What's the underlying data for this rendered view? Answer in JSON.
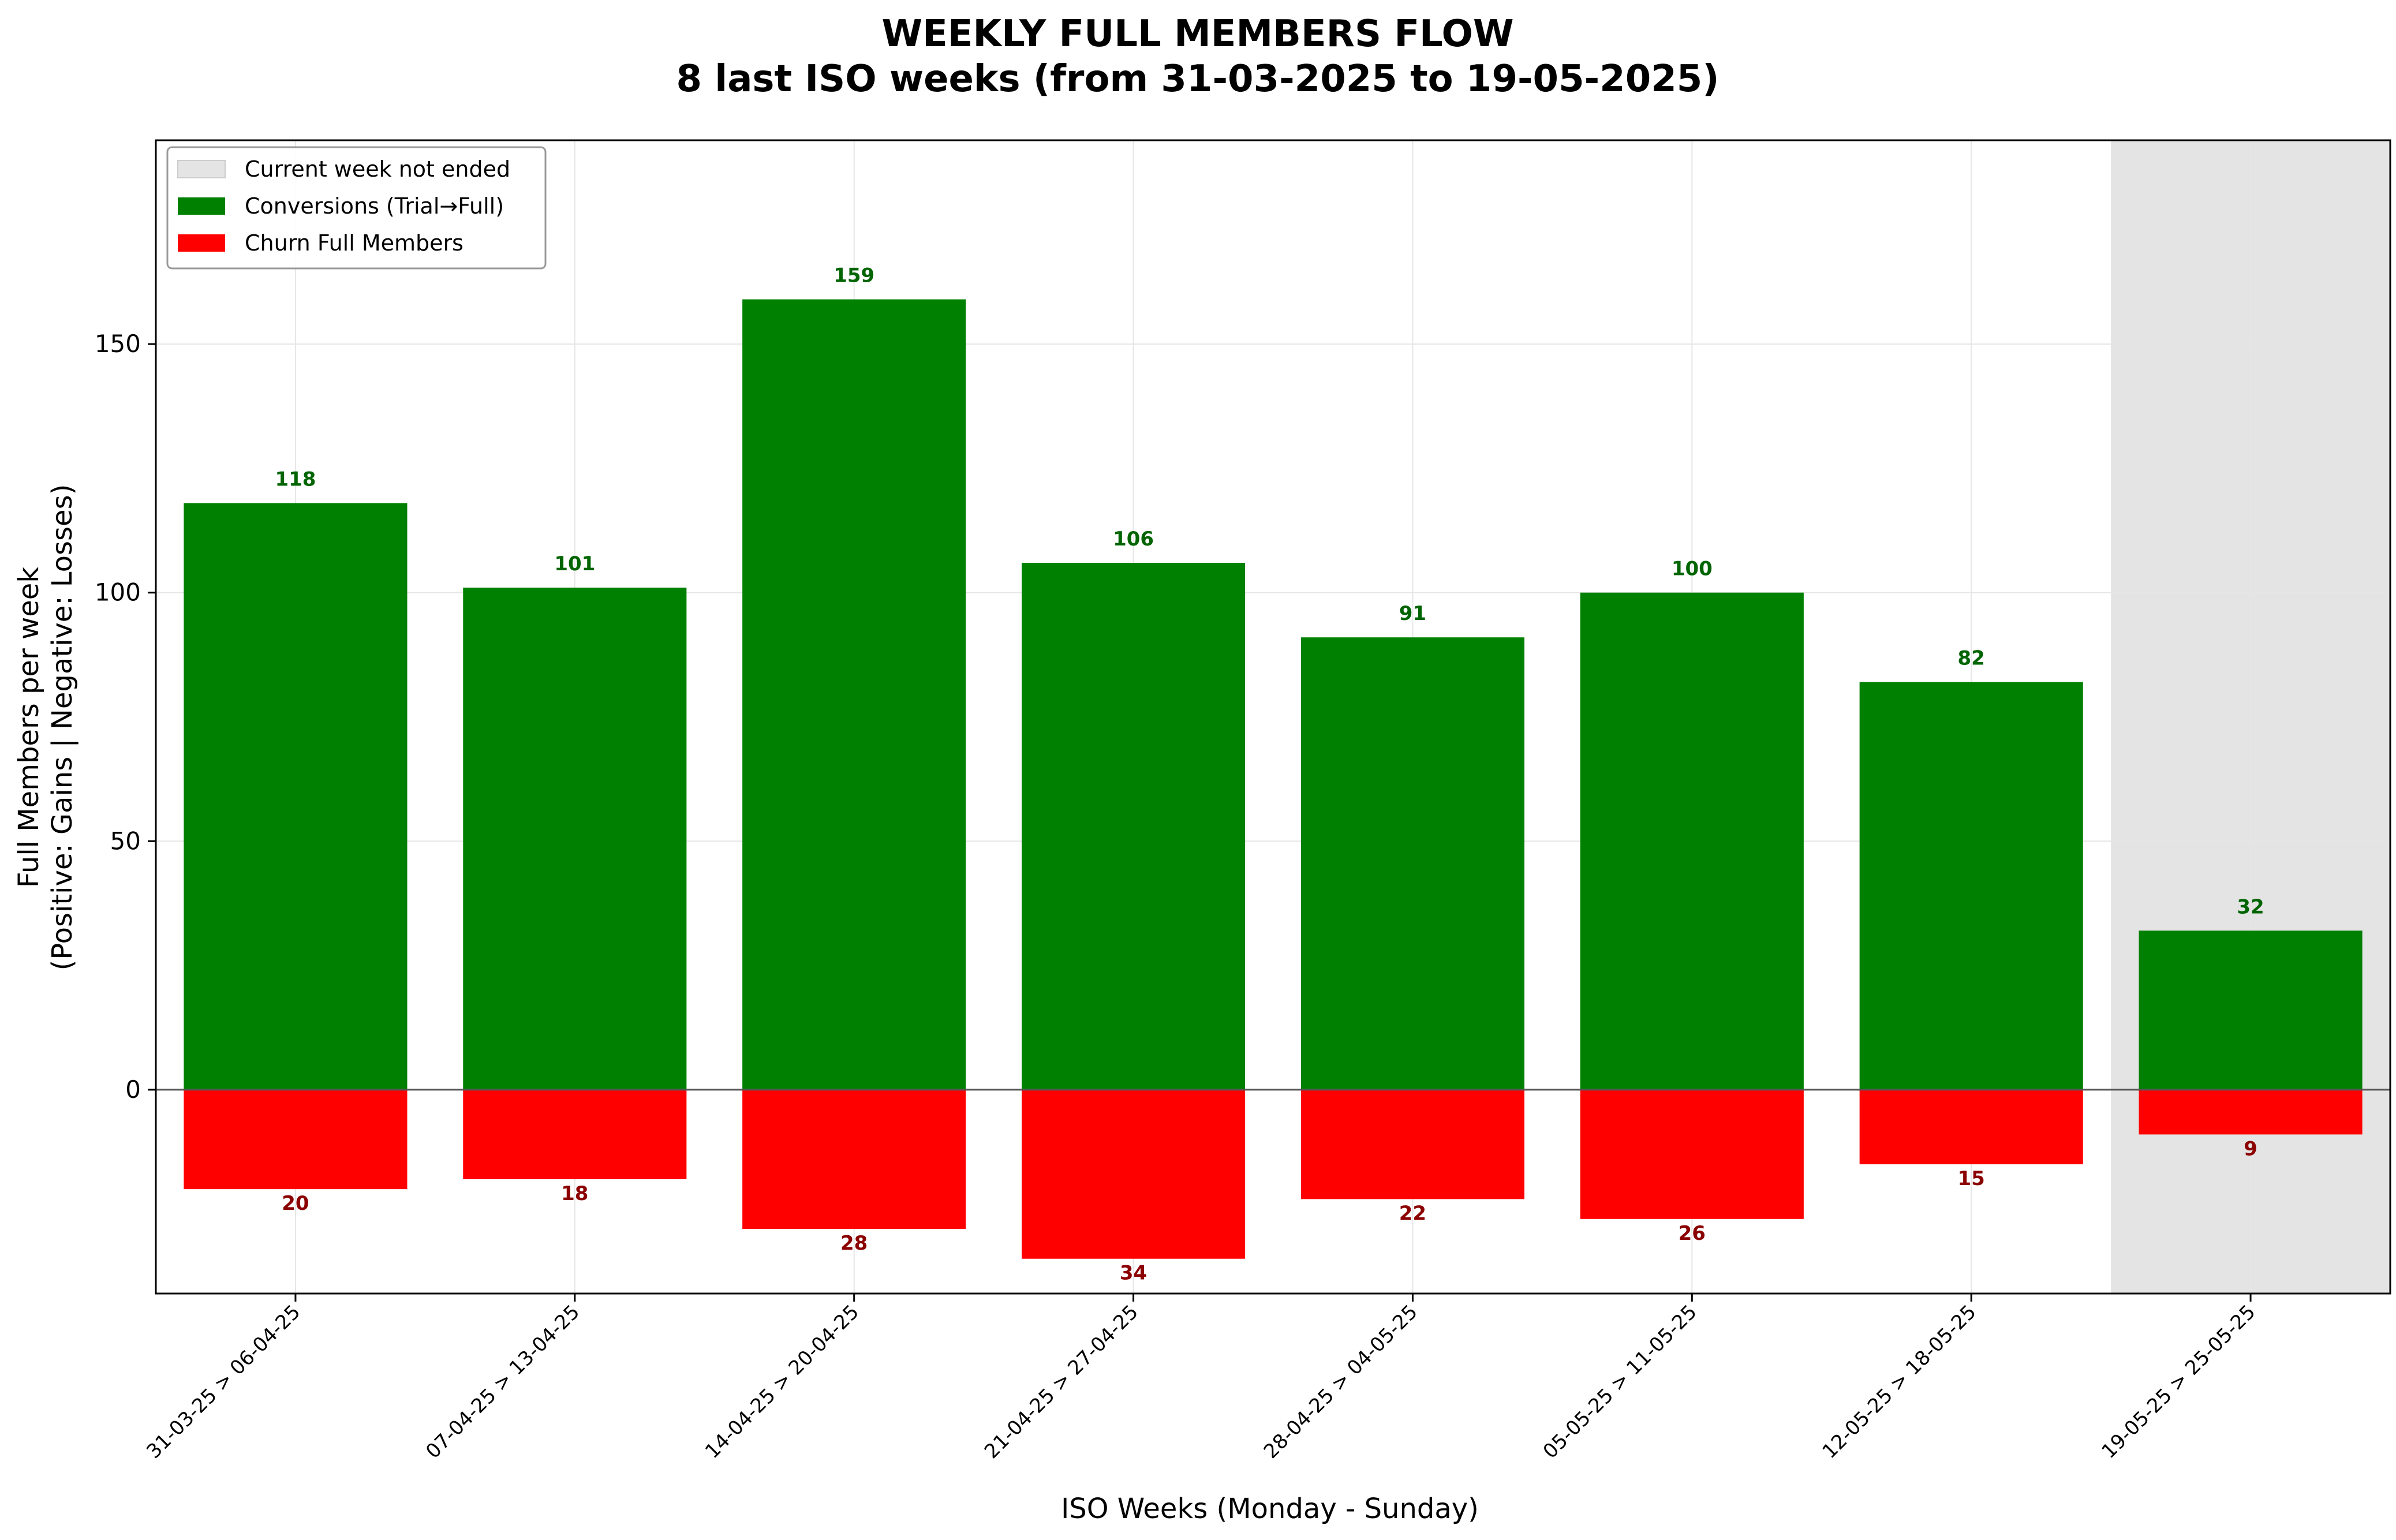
{
  "chart_data": {
    "type": "bar",
    "title": "WEEKLY FULL MEMBERS FLOW",
    "subtitle": "8 last ISO weeks (from 31-03-2025 to 19-05-2025)",
    "xlabel": "ISO Weeks (Monday - Sunday)",
    "ylabel_line1": "Full Members per week",
    "ylabel_line2": "(Positive: Gains | Negative: Losses)",
    "categories": [
      "31-03-25 > 06-04-25",
      "07-04-25 > 13-04-25",
      "14-04-25 > 20-04-25",
      "21-04-25 > 27-04-25",
      "28-04-25 > 04-05-25",
      "05-05-25 > 11-05-25",
      "12-05-25 > 18-05-25",
      "19-05-25 > 25-05-25"
    ],
    "series": [
      {
        "name": "Conversions (Trial→Full)",
        "color": "#008000",
        "values": [
          118,
          101,
          159,
          106,
          91,
          100,
          82,
          32
        ]
      },
      {
        "name": "Churn Full Members",
        "color": "#ff0000",
        "values": [
          -20,
          -18,
          -28,
          -34,
          -22,
          -26,
          -15,
          -9
        ]
      }
    ],
    "value_labels_positive": [
      "118",
      "101",
      "159",
      "106",
      "91",
      "100",
      "82",
      "32"
    ],
    "value_labels_negative": [
      "20",
      "18",
      "28",
      "34",
      "22",
      "26",
      "15",
      "9"
    ],
    "highlight": {
      "label": "Current week not ended",
      "category_index": 7,
      "color": "#e4e4e4"
    },
    "legend": {
      "placement": "top-left",
      "entries": [
        "Current week not ended",
        "Conversions (Trial→Full)",
        "Churn Full Members"
      ]
    },
    "ylim": [
      -41,
      191
    ],
    "yticks": [
      0,
      50,
      100,
      150
    ],
    "ytick_labels": [
      "0",
      "50",
      "100",
      "150"
    ],
    "grid": true
  }
}
